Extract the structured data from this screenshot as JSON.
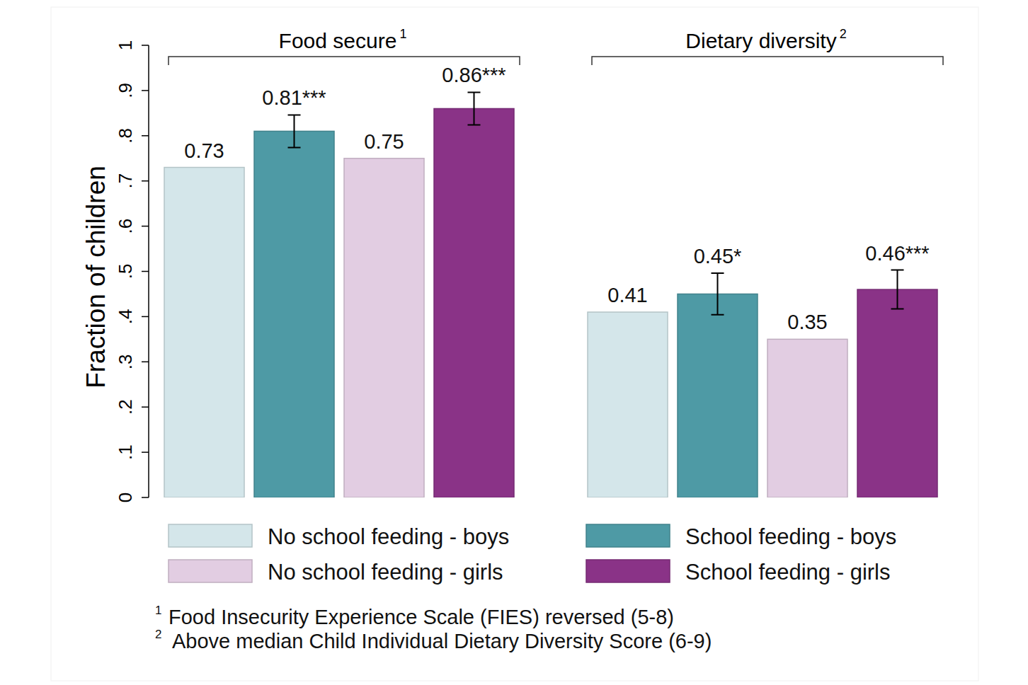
{
  "chart_data": {
    "type": "bar",
    "y_label": "Fraction of children",
    "categories": [
      "Food secure",
      "Dietary diversity"
    ],
    "category_marks": [
      "1",
      "2"
    ],
    "ylim": [
      0,
      1
    ],
    "yticks": [
      0,
      {
        "value": 0.1,
        "label": ".1"
      },
      {
        "value": 0.2,
        "label": ".2"
      },
      {
        "value": 0.3,
        "label": ".3"
      },
      {
        "value": 0.4,
        "label": ".4"
      },
      {
        "value": 0.5,
        "label": ".5"
      },
      {
        "value": 0.6,
        "label": ".6"
      },
      {
        "value": 0.7,
        "label": ".7"
      },
      {
        "value": 0.8,
        "label": ".8"
      },
      {
        "value": 0.9,
        "label": ".9"
      },
      1
    ],
    "grid": false,
    "data_labels": true,
    "legend": "bottom",
    "series": [
      {
        "name": "No school feeding - boys",
        "color": "#d4e6ea",
        "values": [
          0.73,
          0.41
        ]
      },
      {
        "name": "School feeding - boys",
        "color": "#4e9aa5",
        "values": [
          0.81,
          0.45
        ],
        "value_labels": [
          "0.81***",
          "0.45*"
        ],
        "errors": [
          0.036,
          0.046
        ]
      },
      {
        "name": "No school feeding - girls",
        "color": "#e2cde2",
        "values": [
          0.75,
          0.35
        ]
      },
      {
        "name": "School feeding - girls",
        "color": "#8a3387",
        "values": [
          0.86,
          0.46
        ],
        "value_labels": [
          "0.86***",
          "0.46***"
        ],
        "errors": [
          0.036,
          0.043
        ]
      }
    ],
    "footnotes": [
      {
        "mark": "1",
        "text": "Food Insecurity Experience Scale (FIES) reversed (5-8)"
      },
      {
        "mark": "2",
        "text": "Above median Child Individual Dietary Diversity Score (6-9)"
      }
    ]
  }
}
